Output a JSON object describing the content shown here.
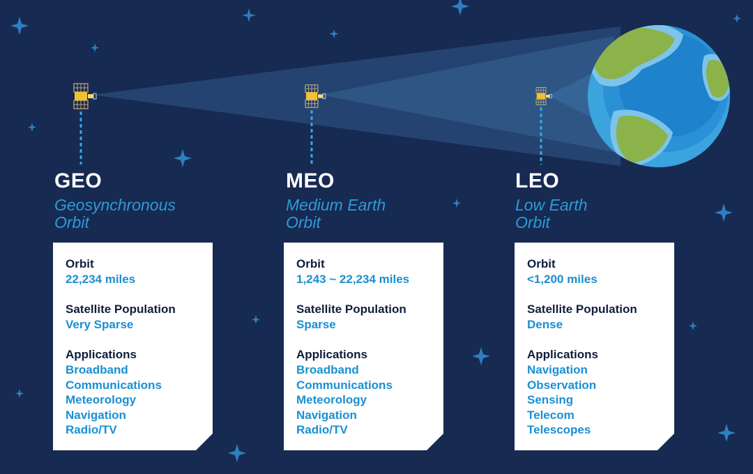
{
  "orbits": [
    {
      "abbr": "GEO",
      "full_line1": "Geosynchronous",
      "full_line2": "Orbit",
      "orbit_label": "Orbit",
      "orbit_value": "22,234 miles",
      "population_label": "Satellite Population",
      "population_value": "Very Sparse",
      "applications_label": "Applications",
      "applications": [
        "Broadband",
        "Communications",
        "Meteorology",
        "Navigation",
        "Radio/TV"
      ]
    },
    {
      "abbr": "MEO",
      "full_line1": "Medium Earth",
      "full_line2": "Orbit",
      "orbit_label": "Orbit",
      "orbit_value": "1,243 ~ 22,234 miles",
      "population_label": "Satellite Population",
      "population_value": "Sparse",
      "applications_label": "Applications",
      "applications": [
        "Broadband",
        "Communications",
        "Meteorology",
        "Navigation",
        "Radio/TV"
      ]
    },
    {
      "abbr": "LEO",
      "full_line1": "Low Earth",
      "full_line2": "Orbit",
      "orbit_label": "Orbit",
      "orbit_value": "<1,200 miles",
      "population_label": "Satellite Population",
      "population_value": "Dense",
      "applications_label": "Applications",
      "applications": [
        "Navigation",
        "Observation",
        "Sensing",
        "Telecom",
        "Telescopes"
      ]
    }
  ],
  "colors": {
    "background": "#172a52",
    "beam": "#4a86bd",
    "accent": "#2d9bd8",
    "earth_ocean": "#1e82cc",
    "earth_land": "#8cb24a",
    "satellite_body": "#f2c033"
  },
  "icons": [
    "satellite-icon",
    "earth-icon",
    "star-icon"
  ]
}
